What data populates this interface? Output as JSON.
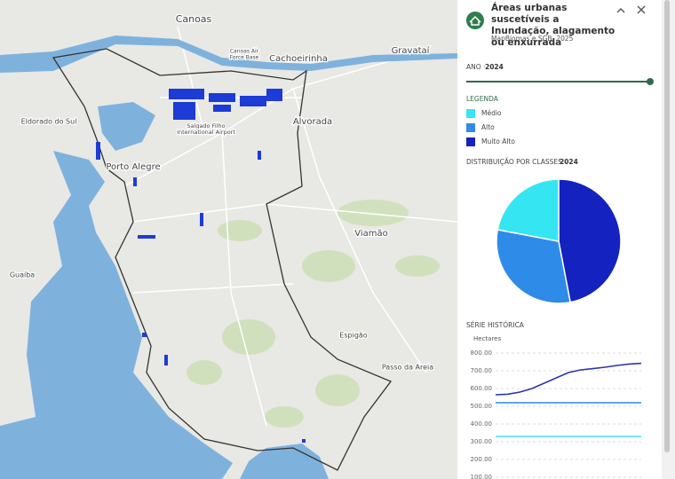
{
  "map": {
    "labels": [
      "Canoas",
      "Canoas Air",
      "Force Base",
      "Cachoeirinha",
      "Gravataí",
      "Eldorado do Sul",
      "Salgado Filho",
      "International Airport",
      "Alvorada",
      "Porto Alegre",
      "Viamão",
      "Guaíba",
      "Espigão",
      "Passo da Areia"
    ]
  },
  "panel": {
    "title": "Áreas urbanas suscetíveis a Inundação, alagamento ou enxurrada",
    "source": "MapBiomas e SGB, 2025",
    "year_label": "ANO ·",
    "year": 2024,
    "legend_title": "LEGENDA"
  },
  "chart_data": [
    {
      "type": "pie",
      "title": "DISTRIBUIÇÃO POR CLASSES -",
      "categories": [
        "Médio",
        "Alto",
        "Muito Alto"
      ],
      "values": [
        22,
        31,
        47
      ],
      "colors": [
        "#35e6f2",
        "#2f8be8",
        "#1422bf"
      ]
    },
    {
      "type": "line",
      "title": "SÉRIE HISTÓRICA",
      "y_label": "Hectares",
      "categories": [
        null,
        null,
        null,
        null,
        null,
        null,
        null,
        null,
        null,
        null,
        null,
        null,
        null
      ],
      "series": [
        {
          "color": "#2b36a8",
          "values": [
            565,
            568,
            580,
            600,
            630,
            660,
            690,
            705,
            712,
            720,
            730,
            738,
            742
          ]
        },
        {
          "color": "#2f86e0",
          "values": [
            520,
            520,
            520,
            520,
            520,
            520,
            520,
            520,
            520,
            520,
            520,
            520,
            520
          ]
        },
        {
          "color": "#3ee4ee",
          "values": [
            330,
            330,
            330,
            330,
            330,
            330,
            330,
            330,
            330,
            330,
            330,
            330,
            330
          ]
        }
      ],
      "ylim": [
        100,
        800
      ],
      "yticks": [
        {
          "value": 100,
          "label": "100.00"
        },
        {
          "value": 200,
          "label": "200.00"
        },
        {
          "value": 300,
          "label": "300.00"
        },
        {
          "value": 400,
          "label": "400.00"
        },
        {
          "value": 500,
          "label": "500.00"
        },
        {
          "value": 600,
          "label": "600.00"
        },
        {
          "value": 700,
          "label": "700.00"
        },
        {
          "value": 800,
          "label": "800.00"
        }
      ],
      "grid": true
    }
  ]
}
